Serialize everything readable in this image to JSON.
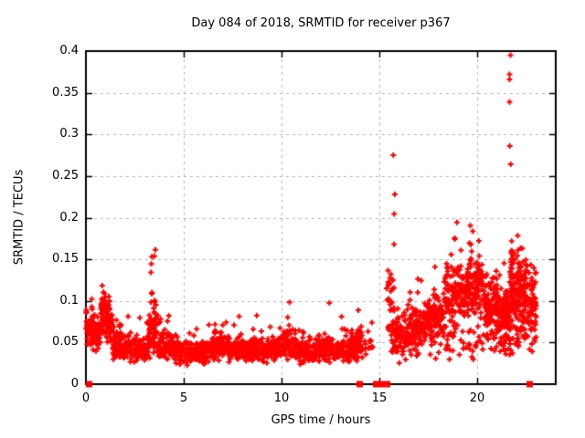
{
  "figure": {
    "background": "#ffffff"
  },
  "chart_data": {
    "type": "scatter",
    "title": "Day 084 of 2018, SRMTID for receiver p367",
    "xlabel": "GPS time / hours",
    "ylabel": "SRMTID / TECUs",
    "xlim": [
      0,
      24
    ],
    "ylim": [
      0,
      0.4
    ],
    "xticks": [
      {
        "value": 0,
        "label": "0"
      },
      {
        "value": 5,
        "label": "5"
      },
      {
        "value": 10,
        "label": "10"
      },
      {
        "value": 15,
        "label": "15"
      },
      {
        "value": 20,
        "label": "20"
      }
    ],
    "yticks": [
      {
        "value": 0,
        "label": "0"
      },
      {
        "value": 0.05,
        "label": "0.05"
      },
      {
        "value": 0.1,
        "label": "0.1"
      },
      {
        "value": 0.15,
        "label": "0.15"
      },
      {
        "value": 0.2,
        "label": "0.2"
      },
      {
        "value": 0.25,
        "label": "0.25"
      },
      {
        "value": 0.3,
        "label": "0.3"
      },
      {
        "value": 0.35,
        "label": "0.35"
      },
      {
        "value": 0.4,
        "label": "0.4"
      }
    ],
    "grid": true,
    "legend": "none",
    "marker": {
      "glyph": "plus",
      "size": 7,
      "stroke": 2
    },
    "colors": {
      "points": "#ff0000",
      "grid": "#b4b4b4",
      "axis": "#000000",
      "text": "#000000",
      "background": "#ffffff"
    },
    "series_name": "SRMTID",
    "outlier_points": [
      [
        15.7,
        0.275
      ],
      [
        15.78,
        0.228
      ],
      [
        15.74,
        0.168
      ],
      [
        21.69,
        0.395
      ],
      [
        21.64,
        0.372
      ],
      [
        21.64,
        0.366
      ],
      [
        21.64,
        0.339
      ],
      [
        21.65,
        0.286
      ],
      [
        21.7,
        0.264
      ]
    ],
    "zero_axis_square_segments": [
      [
        0.02,
        0.3
      ],
      [
        13.93,
        14.08
      ],
      [
        14.65,
        15.55
      ],
      [
        22.58,
        22.73
      ]
    ],
    "cluster_fields": [
      "x_start",
      "x_end",
      "n_points",
      "y_median",
      "y_halfwidth",
      "y_max",
      "tail_fraction"
    ],
    "density_clusters": [
      [
        0.0,
        0.35,
        45,
        0.062,
        0.022,
        0.105,
        0.18
      ],
      [
        0.35,
        0.75,
        55,
        0.06,
        0.022,
        0.11,
        0.15
      ],
      [
        0.75,
        1.05,
        55,
        0.085,
        0.032,
        0.152,
        0.2
      ],
      [
        1.05,
        1.35,
        50,
        0.07,
        0.028,
        0.132,
        0.15
      ],
      [
        1.35,
        2.2,
        110,
        0.045,
        0.02,
        0.095,
        0.12
      ],
      [
        2.2,
        3.1,
        100,
        0.04,
        0.016,
        0.09,
        0.12
      ],
      [
        3.1,
        3.65,
        70,
        0.06,
        0.035,
        0.167,
        0.22
      ],
      [
        3.65,
        4.7,
        110,
        0.046,
        0.022,
        0.12,
        0.12
      ],
      [
        4.7,
        6.4,
        170,
        0.038,
        0.016,
        0.085,
        0.1
      ],
      [
        6.4,
        7.3,
        90,
        0.046,
        0.02,
        0.1,
        0.12
      ],
      [
        7.3,
        9.2,
        190,
        0.04,
        0.016,
        0.09,
        0.1
      ],
      [
        9.2,
        10.0,
        80,
        0.042,
        0.018,
        0.09,
        0.1
      ],
      [
        10.0,
        10.7,
        70,
        0.048,
        0.022,
        0.125,
        0.15
      ],
      [
        10.7,
        11.7,
        100,
        0.038,
        0.015,
        0.08,
        0.1
      ],
      [
        11.7,
        12.6,
        95,
        0.042,
        0.018,
        0.098,
        0.12
      ],
      [
        12.6,
        13.5,
        95,
        0.04,
        0.016,
        0.088,
        0.1
      ],
      [
        13.5,
        14.1,
        65,
        0.046,
        0.02,
        0.098,
        0.12
      ],
      [
        14.1,
        14.65,
        16,
        0.045,
        0.02,
        0.082,
        0.1
      ],
      [
        15.35,
        15.75,
        28,
        0.1,
        0.05,
        0.225,
        0.2
      ],
      [
        15.6,
        16.5,
        85,
        0.06,
        0.025,
        0.135,
        0.15
      ],
      [
        16.5,
        17.3,
        85,
        0.068,
        0.028,
        0.142,
        0.15
      ],
      [
        17.3,
        18.3,
        105,
        0.078,
        0.032,
        0.165,
        0.18
      ],
      [
        18.3,
        19.4,
        130,
        0.108,
        0.042,
        0.21,
        0.18
      ],
      [
        19.4,
        20.3,
        120,
        0.115,
        0.042,
        0.205,
        0.16
      ],
      [
        20.3,
        21.1,
        110,
        0.092,
        0.038,
        0.19,
        0.16
      ],
      [
        21.1,
        21.65,
        90,
        0.082,
        0.036,
        0.178,
        0.16
      ],
      [
        21.65,
        22.15,
        95,
        0.112,
        0.055,
        0.232,
        0.18
      ],
      [
        22.15,
        22.65,
        90,
        0.1,
        0.05,
        0.23,
        0.18
      ],
      [
        22.65,
        23.0,
        45,
        0.095,
        0.042,
        0.168,
        0.15
      ],
      [
        15.7,
        23.0,
        130,
        0.052,
        0.028,
        0.095,
        0.05
      ]
    ],
    "random_seed": 84
  }
}
